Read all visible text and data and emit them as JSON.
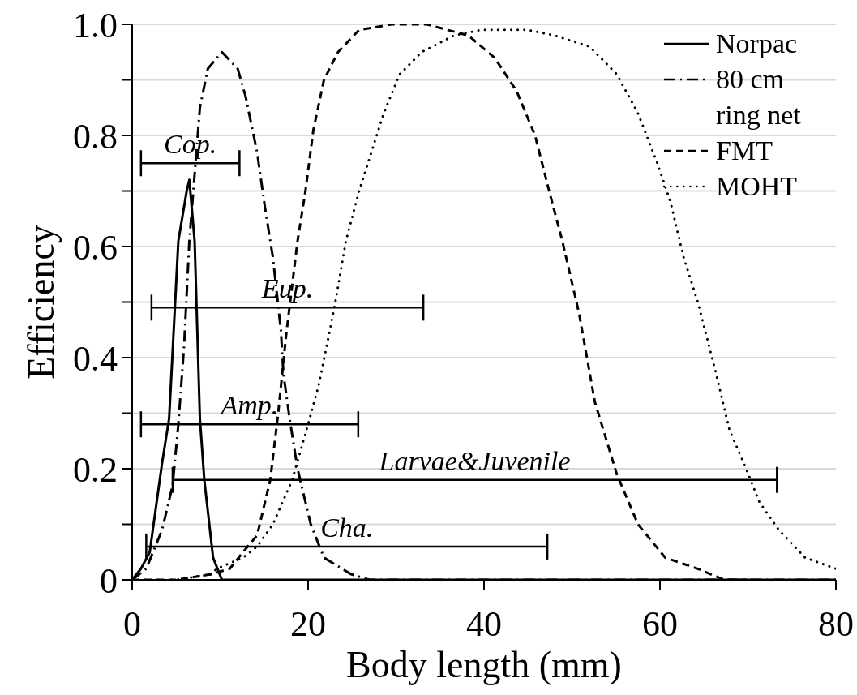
{
  "chart_data": {
    "type": "line",
    "xlabel": "Body length (mm)",
    "ylabel": "Efficiency",
    "xlim": [
      0,
      80
    ],
    "xticks": [
      0,
      20,
      40,
      60,
      80
    ],
    "ylim": [
      0,
      1.0
    ],
    "yticks": [
      0,
      {
        "value": 0.1,
        "label": null
      },
      {
        "value": 0.2,
        "label": "0.2"
      },
      {
        "value": 0.3,
        "label": null
      },
      {
        "value": 0.4,
        "label": "0.4"
      },
      {
        "value": 0.5,
        "label": null
      },
      {
        "value": 0.6,
        "label": "0.6"
      },
      {
        "value": 0.7,
        "label": null
      },
      {
        "value": 0.8,
        "label": "0.8"
      },
      {
        "value": 0.9,
        "label": null
      },
      {
        "value": 1.0,
        "label": "1.0"
      }
    ],
    "grid": "y",
    "legend": "top right",
    "marker": "none",
    "series": [
      {
        "name": "Norpac",
        "color": "#000000",
        "line_style": "solid",
        "x": [
          0,
          1,
          2,
          3.4,
          4.2,
          5.25,
          6.2,
          6.5,
          7.1,
          7.7,
          8.2,
          9.2,
          10.2,
          80
        ],
        "values": [
          0,
          0.02,
          0.05,
          0.21,
          0.29,
          0.61,
          0.7,
          0.72,
          0.61,
          0.29,
          0.18,
          0.04,
          0,
          0
        ]
      },
      {
        "name": "80 cm ring net",
        "color": "#000000",
        "line_style": "dashdot",
        "x": [
          0,
          1.6,
          3.4,
          4.6,
          5.25,
          5.9,
          6.5,
          7.7,
          8.6,
          10.2,
          12,
          12.9,
          14.2,
          15.1,
          16,
          16.9,
          17.2,
          17.9,
          18.8,
          20.3,
          21.8,
          24.9,
          27,
          80
        ],
        "values": [
          0,
          0.02,
          0.09,
          0.17,
          0.28,
          0.42,
          0.61,
          0.85,
          0.92,
          0.95,
          0.92,
          0.87,
          0.77,
          0.67,
          0.58,
          0.45,
          0.37,
          0.29,
          0.2,
          0.1,
          0.04,
          0.01,
          0,
          0
        ]
      },
      {
        "name": "FMT",
        "color": "#000000",
        "line_style": "dashed",
        "x": [
          0,
          5,
          8.9,
          11.1,
          12.6,
          14.2,
          15.7,
          16.6,
          17.5,
          18.8,
          19.7,
          20.6,
          21.8,
          23.4,
          25.8,
          29.5,
          33.5,
          38.2,
          41.2,
          43.7,
          45.8,
          47.4,
          48.9,
          50.8,
          52.6,
          55.1,
          57.5,
          60.6,
          64.3,
          67.3,
          70.4
        ],
        "values": [
          0,
          0,
          0.01,
          0.02,
          0.05,
          0.08,
          0.18,
          0.3,
          0.44,
          0.61,
          0.7,
          0.81,
          0.9,
          0.95,
          0.99,
          1.0,
          1.0,
          0.98,
          0.94,
          0.88,
          0.8,
          0.7,
          0.61,
          0.48,
          0.32,
          0.19,
          0.1,
          0.04,
          0.02,
          0,
          0
        ]
      },
      {
        "name": "MOHT",
        "color": "#000000",
        "line_style": "dotted",
        "x": [
          0,
          5,
          9,
          9.6,
          12.6,
          14.2,
          16,
          18.2,
          20,
          21.2,
          22.1,
          23.1,
          24.3,
          25.8,
          27.4,
          28.6,
          30.4,
          32.9,
          36.6,
          39.7,
          44.9,
          48,
          52,
          55.1,
          57.5,
          59.7,
          61.2,
          62.7,
          64.3,
          66.4,
          67.9,
          69.8,
          71.3,
          73.5,
          76.5,
          80
        ],
        "values": [
          0,
          0,
          0.01,
          0.02,
          0.04,
          0.06,
          0.1,
          0.18,
          0.28,
          0.35,
          0.42,
          0.5,
          0.61,
          0.7,
          0.78,
          0.84,
          0.91,
          0.95,
          0.98,
          0.99,
          0.99,
          0.98,
          0.96,
          0.91,
          0.84,
          0.75,
          0.68,
          0.58,
          0.5,
          0.37,
          0.27,
          0.2,
          0.14,
          0.09,
          0.04,
          0.02
        ]
      },
      {
        "name": "Cop.",
        "color": "#000000",
        "x": [
          1.0,
          12.2
        ],
        "values": [
          0.75,
          0.75
        ]
      },
      {
        "name": "Eup.",
        "color": "#000000",
        "x": [
          2.2,
          33.1
        ],
        "values": [
          0.49,
          0.49
        ]
      },
      {
        "name": "Amp.",
        "color": "#000000",
        "x": [
          1.0,
          25.7
        ],
        "values": [
          0.28,
          0.28
        ]
      },
      {
        "name": "Larvae&Juvenile",
        "color": "#000000",
        "x": [
          4.6,
          73.3
        ],
        "values": [
          0.18,
          0.18
        ]
      },
      {
        "name": "Cha.",
        "color": "#000000",
        "x": [
          1.6,
          47.2
        ],
        "values": [
          0.06,
          0.06
        ]
      }
    ]
  }
}
